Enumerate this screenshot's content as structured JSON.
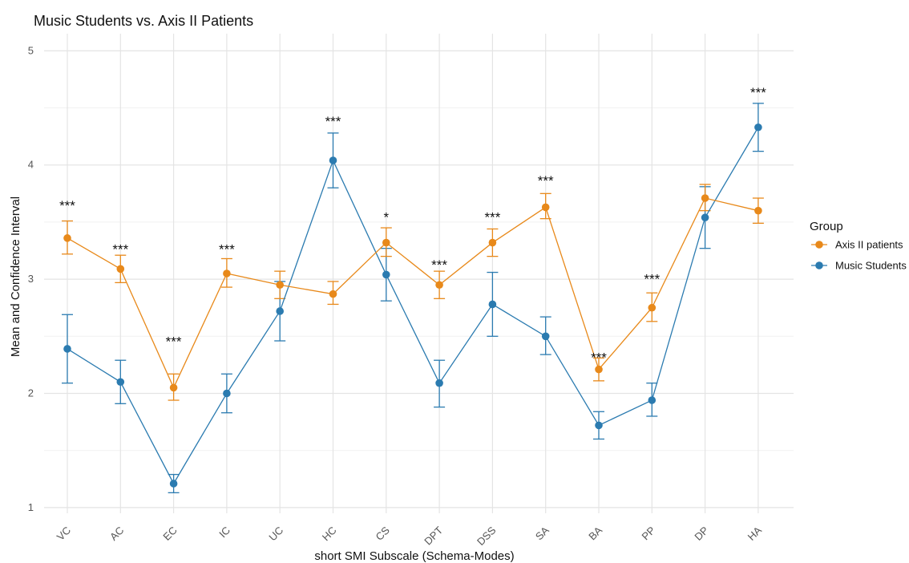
{
  "chart_data": {
    "type": "line",
    "title": "Music Students vs. Axis II Patients",
    "xlabel": "short SMI Subscale (Schema-Modes)",
    "ylabel": "Mean and Confidence Interval",
    "categories": [
      "VC",
      "AC",
      "EC",
      "IC",
      "UC",
      "HC",
      "CS",
      "DPT",
      "DSS",
      "SA",
      "BA",
      "PP",
      "DP",
      "HA"
    ],
    "ylim": [
      0.95,
      5.15
    ],
    "yticks": [
      "1",
      "2",
      "3",
      "4",
      "5"
    ],
    "grid": true,
    "legend": {
      "title": "Group",
      "position": "right"
    },
    "series": [
      {
        "name": "Axis II patients",
        "color": "#E8891A",
        "values": [
          3.36,
          3.09,
          2.05,
          3.05,
          2.95,
          2.87,
          3.32,
          2.95,
          3.32,
          3.63,
          2.21,
          2.75,
          3.71,
          3.6
        ],
        "lower": [
          3.22,
          2.97,
          1.94,
          2.93,
          2.83,
          2.78,
          3.2,
          2.83,
          3.2,
          3.53,
          2.11,
          2.63,
          3.6,
          3.49
        ],
        "upper": [
          3.51,
          3.21,
          2.17,
          3.18,
          3.07,
          2.98,
          3.45,
          3.07,
          3.44,
          3.75,
          2.31,
          2.88,
          3.83,
          3.71
        ]
      },
      {
        "name": "Music Students",
        "color": "#2B7BB0",
        "values": [
          2.39,
          2.1,
          1.21,
          2.0,
          2.72,
          4.04,
          3.04,
          2.09,
          2.78,
          2.5,
          1.72,
          1.94,
          3.54,
          4.33
        ],
        "lower": [
          2.09,
          1.91,
          1.13,
          1.83,
          2.46,
          3.8,
          2.81,
          1.88,
          2.5,
          2.34,
          1.6,
          1.8,
          3.27,
          4.12
        ],
        "upper": [
          2.69,
          2.29,
          1.29,
          2.17,
          2.98,
          4.28,
          3.27,
          2.29,
          3.06,
          2.67,
          1.84,
          2.09,
          3.81,
          4.54
        ]
      }
    ],
    "annotations": [
      "***",
      "***",
      "***",
      "***",
      "",
      "***",
      "*",
      "***",
      "***",
      "***",
      "***",
      "***",
      "",
      "***"
    ],
    "annotation_y": [
      3.66,
      3.28,
      2.47,
      3.28,
      null,
      4.4,
      3.56,
      3.14,
      3.56,
      3.88,
      2.33,
      3.02,
      null,
      4.65
    ]
  }
}
